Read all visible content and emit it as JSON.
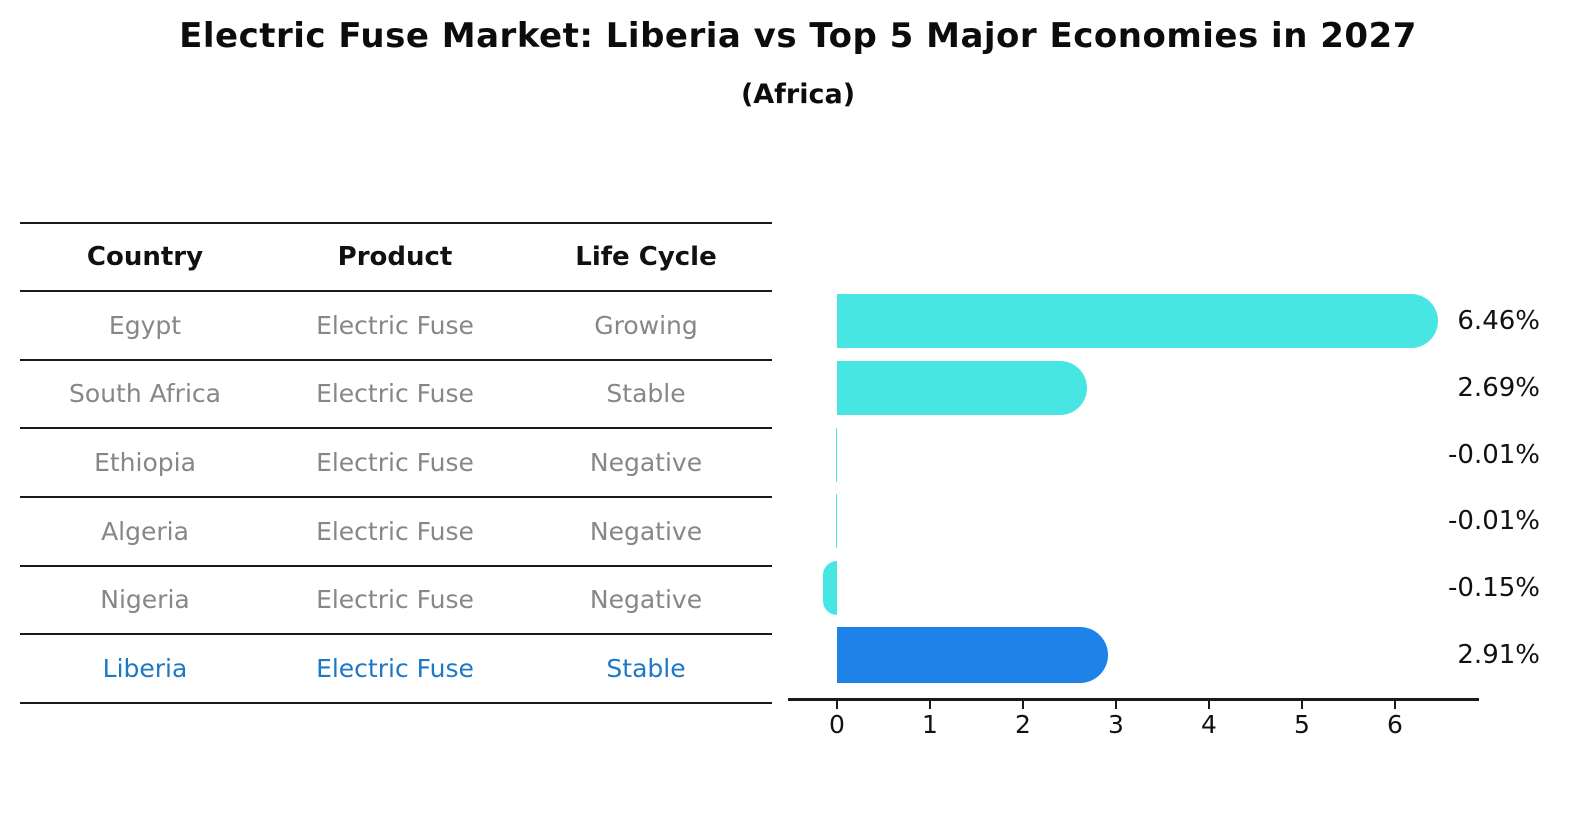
{
  "title": "Electric Fuse Market: Liberia vs Top 5 Major Economies in 2027",
  "subtitle": "(Africa)",
  "table": {
    "headers": [
      "Country",
      "Product",
      "Life Cycle"
    ],
    "rows": [
      {
        "country": "Egypt",
        "product": "Electric Fuse",
        "life_cycle": "Growing",
        "highlight": false
      },
      {
        "country": "South Africa",
        "product": "Electric Fuse",
        "life_cycle": "Stable",
        "highlight": false
      },
      {
        "country": "Ethiopia",
        "product": "Electric Fuse",
        "life_cycle": "Negative",
        "highlight": false
      },
      {
        "country": "Algeria",
        "product": "Electric Fuse",
        "life_cycle": "Negative",
        "highlight": false
      },
      {
        "country": "Nigeria",
        "product": "Electric Fuse",
        "life_cycle": "Negative",
        "highlight": false
      },
      {
        "country": "Liberia",
        "product": "Electric Fuse",
        "life_cycle": "Stable",
        "highlight": true
      }
    ]
  },
  "chart_data": {
    "type": "bar",
    "orientation": "horizontal",
    "title": "Electric Fuse Market: Liberia vs Top 5 Major Economies in 2027",
    "subtitle": "(Africa)",
    "categories": [
      "Egypt",
      "South Africa",
      "Ethiopia",
      "Algeria",
      "Nigeria",
      "Liberia"
    ],
    "values": [
      6.46,
      2.69,
      -0.01,
      -0.01,
      -0.15,
      2.91
    ],
    "value_labels": [
      "6.46%",
      "2.69%",
      "-0.01%",
      "-0.01%",
      "-0.15%",
      "2.91%"
    ],
    "highlight_index": 5,
    "xticks": [
      "0",
      "1",
      "2",
      "3",
      "4",
      "5",
      "6"
    ],
    "xlim": [
      -0.53,
      6.9
    ],
    "grid": false,
    "legend": false,
    "colors": {
      "bar": "#47E6E2",
      "highlight_bar": "#1E82E8",
      "highlight_text": "#1D78C8",
      "cell_text": "#878787",
      "header_text": "#111111",
      "axis": "#1a1a1a"
    }
  }
}
